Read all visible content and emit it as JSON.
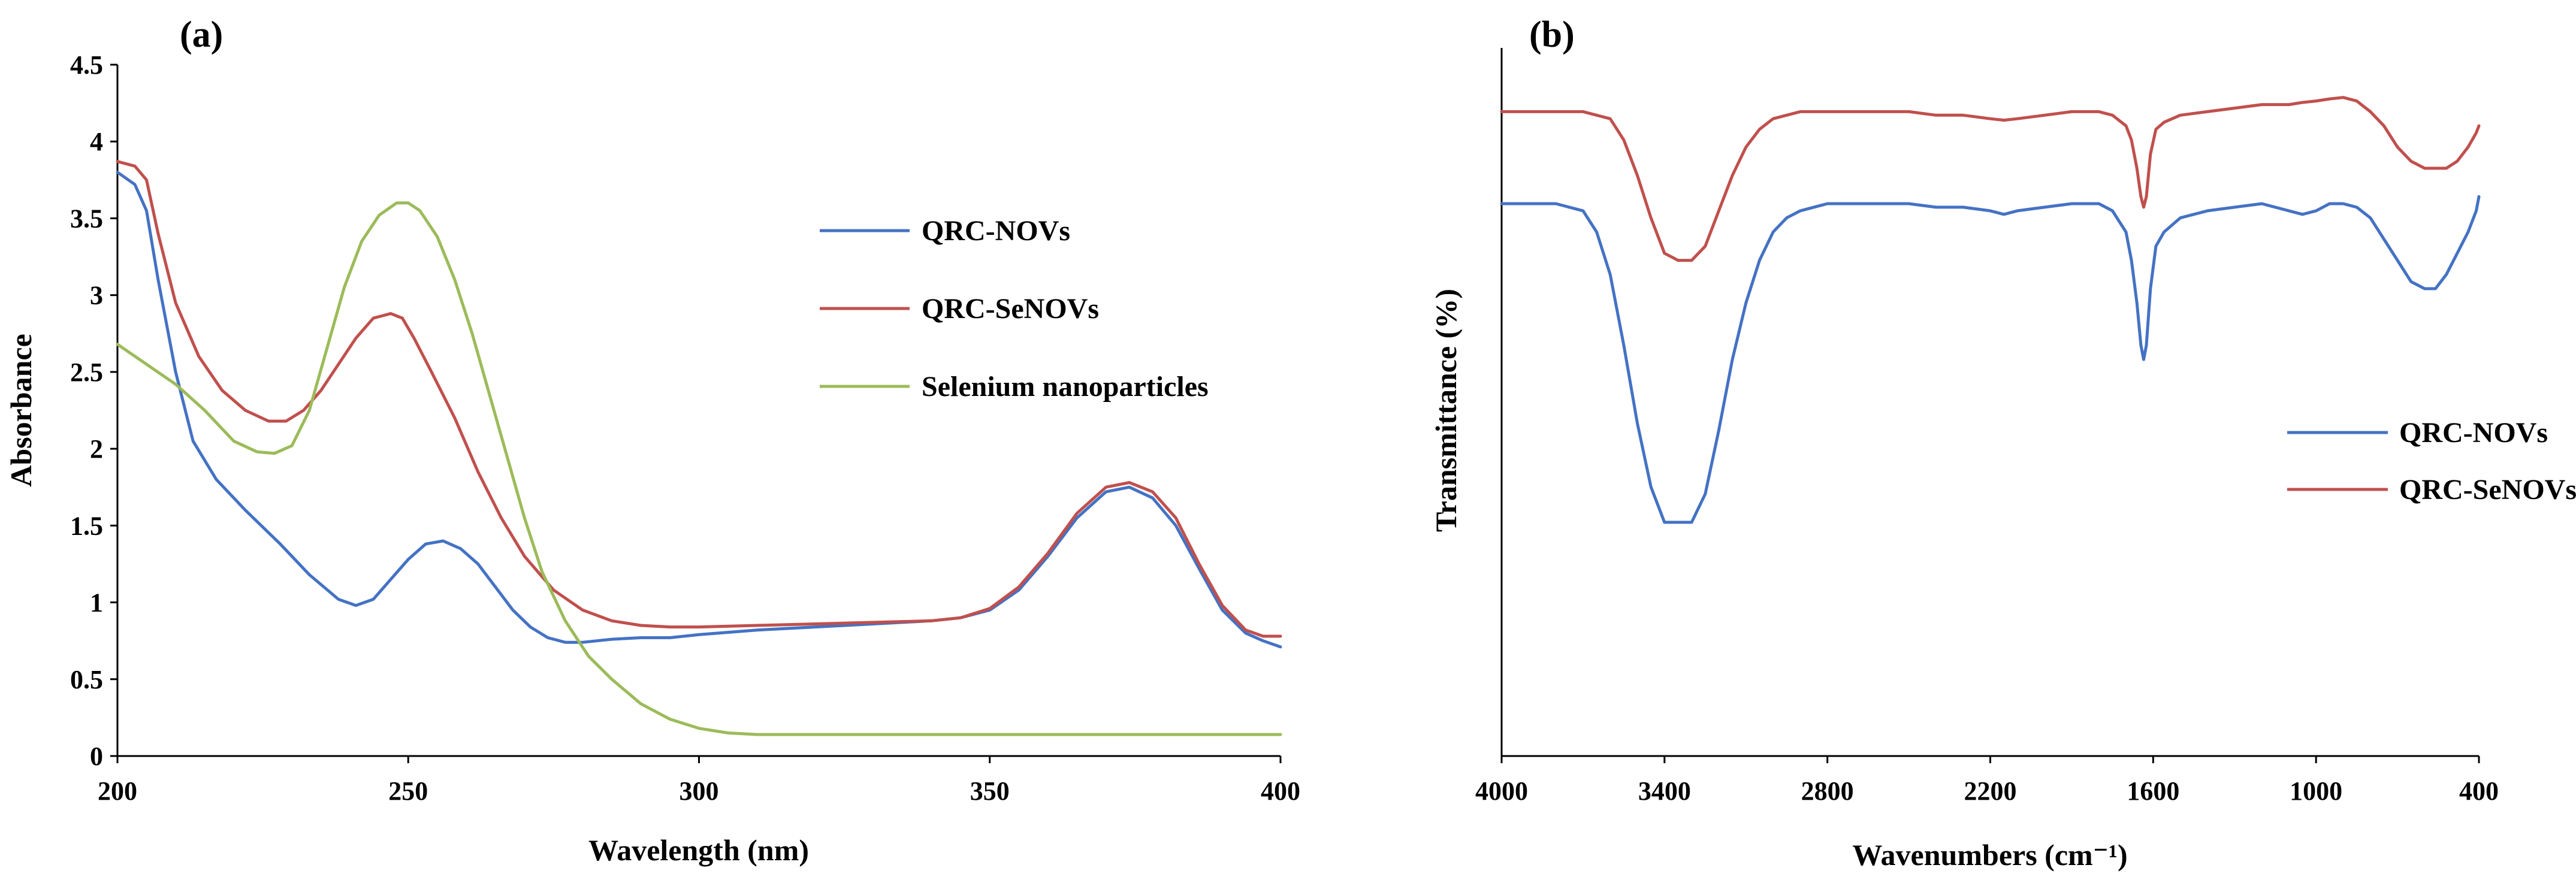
{
  "chart_data": [
    {
      "type": "line",
      "panel_label": "(a)",
      "xlabel": "Wavelength (nm)",
      "ylabel": "Absorbance",
      "xlim": [
        200,
        400
      ],
      "ylim": [
        0,
        4.5
      ],
      "xticks": [
        "200",
        "250",
        "300",
        "350",
        "400"
      ],
      "yticks": [
        "0",
        "0.5",
        "1",
        "1.5",
        "2",
        "2.5",
        "3",
        "3.5",
        "4",
        "4.5"
      ],
      "legend_position": "right",
      "series": [
        {
          "name": "QRC-NOVs",
          "color": "#4472C4",
          "x": [
            200,
            203,
            205,
            207,
            210,
            213,
            217,
            222,
            228,
            233,
            238,
            241,
            244,
            247,
            250,
            253,
            256,
            259,
            262,
            265,
            268,
            271,
            274,
            277,
            280,
            285,
            290,
            295,
            300,
            310,
            320,
            330,
            340,
            345,
            350,
            355,
            360,
            365,
            370,
            374,
            378,
            382,
            386,
            390,
            394,
            397,
            400
          ],
          "y": [
            3.8,
            3.72,
            3.55,
            3.1,
            2.5,
            2.05,
            1.8,
            1.6,
            1.38,
            1.18,
            1.02,
            0.98,
            1.02,
            1.15,
            1.28,
            1.38,
            1.4,
            1.35,
            1.25,
            1.1,
            0.95,
            0.84,
            0.77,
            0.74,
            0.74,
            0.76,
            0.77,
            0.77,
            0.79,
            0.82,
            0.84,
            0.86,
            0.88,
            0.9,
            0.95,
            1.08,
            1.3,
            1.55,
            1.72,
            1.75,
            1.68,
            1.5,
            1.22,
            0.95,
            0.8,
            0.75,
            0.71
          ]
        },
        {
          "name": "QRC-SeNOVs",
          "color": "#C0504D",
          "x": [
            200,
            203,
            205,
            207,
            210,
            214,
            218,
            222,
            226,
            229,
            232,
            235,
            238,
            241,
            244,
            247,
            249,
            251,
            254,
            258,
            262,
            266,
            270,
            275,
            280,
            285,
            290,
            295,
            300,
            310,
            320,
            330,
            340,
            345,
            350,
            355,
            360,
            365,
            370,
            374,
            378,
            382,
            386,
            390,
            394,
            397,
            400
          ],
          "y": [
            3.87,
            3.84,
            3.75,
            3.4,
            2.95,
            2.6,
            2.38,
            2.25,
            2.18,
            2.18,
            2.25,
            2.38,
            2.55,
            2.72,
            2.85,
            2.88,
            2.85,
            2.72,
            2.5,
            2.2,
            1.85,
            1.55,
            1.3,
            1.08,
            0.95,
            0.88,
            0.85,
            0.84,
            0.84,
            0.85,
            0.86,
            0.87,
            0.88,
            0.9,
            0.96,
            1.1,
            1.32,
            1.58,
            1.75,
            1.78,
            1.72,
            1.55,
            1.25,
            0.98,
            0.82,
            0.78,
            0.78
          ]
        },
        {
          "name": "Selenium nanoparticles",
          "color": "#9BBB59",
          "x": [
            200,
            205,
            210,
            215,
            220,
            224,
            227,
            230,
            233,
            236,
            239,
            242,
            245,
            248,
            250,
            252,
            255,
            258,
            261,
            264,
            267,
            270,
            273,
            277,
            281,
            285,
            290,
            295,
            300,
            305,
            310,
            320,
            330,
            340,
            350,
            360,
            370,
            380,
            390,
            400
          ],
          "y": [
            2.68,
            2.55,
            2.42,
            2.25,
            2.05,
            1.98,
            1.97,
            2.02,
            2.25,
            2.65,
            3.05,
            3.35,
            3.52,
            3.6,
            3.6,
            3.55,
            3.38,
            3.1,
            2.75,
            2.35,
            1.95,
            1.55,
            1.2,
            0.88,
            0.65,
            0.5,
            0.34,
            0.24,
            0.18,
            0.15,
            0.14,
            0.14,
            0.14,
            0.14,
            0.14,
            0.14,
            0.14,
            0.14,
            0.14,
            0.14
          ]
        }
      ]
    },
    {
      "type": "line",
      "panel_label": "(b)",
      "xlabel": "Wavenumbers (cm⁻¹)",
      "ylabel": "Transmittance (%)",
      "xlim": [
        4000,
        400
      ],
      "y_units": "relative transmittance, arbitrary units (no y tick labels shown)",
      "ylim": [
        0,
        100
      ],
      "xticks": [
        "4000",
        "3400",
        "2800",
        "2200",
        "1600",
        "1000",
        "400"
      ],
      "legend_position": "right",
      "series": [
        {
          "name": "QRC-NOVs",
          "color": "#4472C4",
          "x": [
            4000,
            3900,
            3800,
            3700,
            3650,
            3600,
            3550,
            3500,
            3450,
            3400,
            3350,
            3300,
            3250,
            3200,
            3150,
            3100,
            3050,
            3000,
            2950,
            2900,
            2850,
            2800,
            2700,
            2600,
            2500,
            2400,
            2300,
            2200,
            2150,
            2100,
            2000,
            1900,
            1800,
            1750,
            1700,
            1680,
            1660,
            1645,
            1635,
            1625,
            1610,
            1590,
            1560,
            1500,
            1400,
            1300,
            1200,
            1150,
            1100,
            1050,
            1000,
            950,
            900,
            850,
            800,
            750,
            700,
            650,
            600,
            560,
            520,
            480,
            440,
            410,
            400
          ],
          "y": [
            78,
            78,
            78,
            77,
            74,
            68,
            58,
            47,
            38,
            33,
            33,
            33,
            37,
            46,
            56,
            64,
            70,
            74,
            76,
            77,
            77.5,
            78,
            78,
            78,
            78,
            77.5,
            77.5,
            77,
            76.5,
            77,
            77.5,
            78,
            78,
            77,
            74,
            70,
            64,
            58,
            56,
            58,
            66,
            72,
            74,
            76,
            77,
            77.5,
            78,
            77.5,
            77,
            76.5,
            77,
            78,
            78,
            77.5,
            76,
            73,
            70,
            67,
            66,
            66,
            68,
            71,
            74,
            77,
            79
          ]
        },
        {
          "name": "QRC-SeNOVs",
          "color": "#C0504D",
          "x": [
            4000,
            3900,
            3800,
            3700,
            3650,
            3600,
            3550,
            3500,
            3450,
            3400,
            3350,
            3300,
            3250,
            3200,
            3150,
            3100,
            3050,
            3000,
            2950,
            2900,
            2850,
            2800,
            2700,
            2600,
            2500,
            2400,
            2300,
            2200,
            2150,
            2100,
            2000,
            1900,
            1800,
            1750,
            1700,
            1680,
            1660,
            1645,
            1635,
            1625,
            1610,
            1590,
            1560,
            1500,
            1400,
            1300,
            1200,
            1150,
            1100,
            1050,
            1000,
            950,
            900,
            850,
            800,
            750,
            700,
            650,
            600,
            560,
            520,
            480,
            440,
            410,
            400
          ],
          "y": [
            91,
            91,
            91,
            91,
            90.5,
            90,
            87,
            82,
            76,
            71,
            70,
            70,
            72,
            77,
            82,
            86,
            88.5,
            90,
            90.5,
            91,
            91,
            91,
            91,
            91,
            91,
            90.5,
            90.5,
            90,
            89.8,
            90,
            90.5,
            91,
            91,
            90.5,
            89,
            87,
            83,
            79,
            77.5,
            79,
            85,
            88.5,
            89.5,
            90.5,
            91,
            91.5,
            92,
            92,
            92,
            92.3,
            92.5,
            92.8,
            93,
            92.5,
            91,
            89,
            86,
            84,
            83,
            83,
            83,
            84,
            86,
            88,
            89
          ]
        }
      ]
    }
  ]
}
